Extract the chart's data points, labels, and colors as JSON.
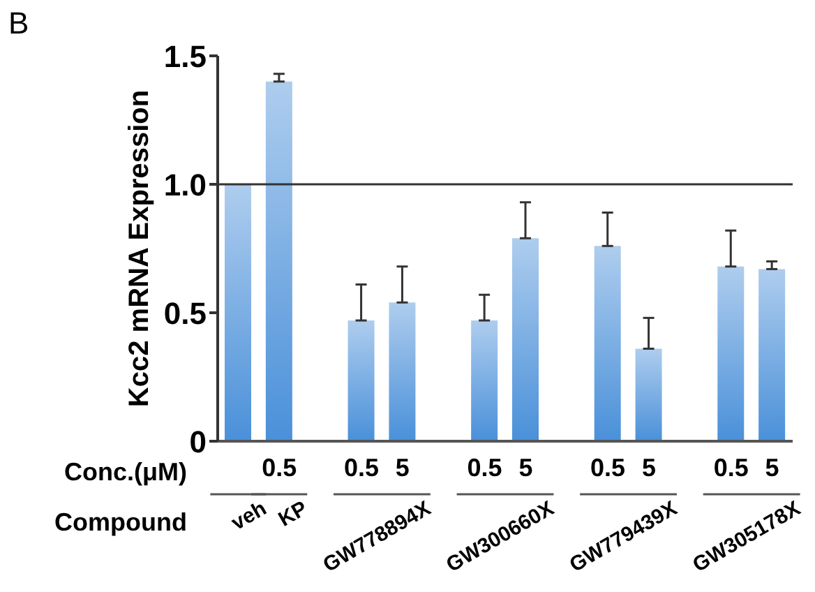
{
  "chart_data": {
    "type": "bar",
    "ylabel": "Kcc2 mRNA Expression",
    "categories": [
      null,
      "0.5",
      null,
      "0.5",
      "5",
      null,
      "0.5",
      "5",
      null,
      "0.5",
      "5",
      null,
      "0.5",
      "5"
    ],
    "values": [
      1.0,
      1.4,
      null,
      0.47,
      0.54,
      null,
      0.47,
      0.79,
      null,
      0.76,
      0.36,
      null,
      0.68,
      0.67
    ],
    "errors": [
      null,
      [
        1.4,
        1.43
      ],
      null,
      [
        0.47,
        0.61
      ],
      [
        0.54,
        0.68
      ],
      null,
      [
        0.47,
        0.57
      ],
      [
        0.79,
        0.93
      ],
      null,
      [
        0.76,
        0.89
      ],
      [
        0.36,
        0.48
      ],
      null,
      [
        0.68,
        0.82
      ],
      [
        0.67,
        0.7
      ]
    ],
    "color": "#4a90d9",
    "ylim": [
      0,
      1.5
    ],
    "yticks": [
      0,
      0.5,
      {
        "value": 1,
        "label": "1.0"
      },
      1.5
    ],
    "ref_lines": [
      {
        "axis": "y",
        "value": 1,
        "color": "#333333"
      }
    ],
    "grid": false,
    "legend": false,
    "annotations": [
      "B",
      "Conc.(μM)",
      "Compound",
      "veh",
      "KP",
      "GW778894X",
      "GW300660X",
      "GW779439X",
      "GW305178X"
    ]
  }
}
